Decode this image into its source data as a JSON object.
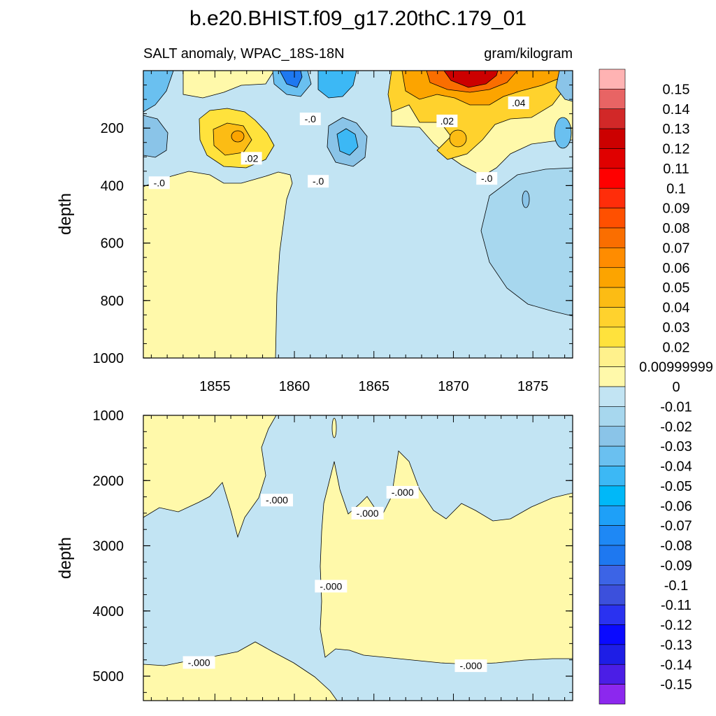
{
  "figure": {
    "title": "b.e20.BHIST.f09_g17.20thC.179_01",
    "left_subtitle": "SALT anomaly, WPAC_18S-18N",
    "right_subtitle": "gram/kilogram"
  },
  "colors": {
    "pos_light": "#fff9aa",
    "neg_light": "#c2e4f3",
    "contour_line": "#000000"
  },
  "chart_data": [
    {
      "type": "heatmap",
      "panel": "upper",
      "ylabel": "depth",
      "y_reversed": true,
      "ylim": [
        1000,
        0
      ],
      "xlim": [
        1850.5,
        1877.5
      ],
      "x_ticks": [
        "1855",
        "1860",
        "1865",
        "1870",
        "1875"
      ],
      "x_tick_values": [
        1855,
        1860,
        1865,
        1870,
        1875
      ],
      "y_ticks": [
        "200",
        "400",
        "600",
        "800",
        "1000"
      ],
      "y_tick_values": [
        200,
        400,
        600,
        800,
        1000
      ],
      "contour_labels": [
        {
          "text": "-.0",
          "x": 1851.5,
          "y": 390
        },
        {
          "text": ".02",
          "x": 1857.3,
          "y": 305
        },
        {
          "text": "-.0",
          "x": 1861.0,
          "y": 168
        },
        {
          "text": "-.0",
          "x": 1861.5,
          "y": 385
        },
        {
          "text": ".02",
          "x": 1869.6,
          "y": 175
        },
        {
          "text": ".04",
          "x": 1874.1,
          "y": 112
        },
        {
          "text": "-.0",
          "x": 1872.1,
          "y": 375
        }
      ]
    },
    {
      "type": "heatmap",
      "panel": "lower",
      "ylabel": "depth",
      "y_reversed": true,
      "ylim": [
        5375,
        1000
      ],
      "xlim": [
        1850.5,
        1877.5
      ],
      "y_ticks": [
        "1000",
        "2000",
        "3000",
        "4000",
        "5000"
      ],
      "y_tick_values": [
        1000,
        2000,
        3000,
        4000,
        5000
      ],
      "contour_labels": [
        {
          "text": "-.000",
          "x": 1858.9,
          "y": 2300
        },
        {
          "text": "-.000",
          "x": 1864.6,
          "y": 2500
        },
        {
          "text": "-.000",
          "x": 1866.8,
          "y": 2180
        },
        {
          "text": "-.000",
          "x": 1862.3,
          "y": 3620
        },
        {
          "text": "-.000",
          "x": 1854.0,
          "y": 4790
        },
        {
          "text": "-.000",
          "x": 1871.1,
          "y": 4840
        }
      ]
    }
  ],
  "colorbar": {
    "labels": [
      "0.15",
      "0.14",
      "0.13",
      "0.12",
      "0.11",
      "0.1",
      "0.09",
      "0.08",
      "0.07",
      "0.06",
      "0.05",
      "0.04",
      "0.03",
      "0.02",
      "0.00999999",
      "0",
      "-0.01",
      "-0.02",
      "-0.03",
      "-0.04",
      "-0.05",
      "-0.06",
      "-0.07",
      "-0.08",
      "-0.09",
      "-0.1",
      "-0.11",
      "-0.12",
      "-0.13",
      "-0.14",
      "-0.15"
    ],
    "colors": [
      "#ffb3b3",
      "#e86464",
      "#d22828",
      "#cc0000",
      "#e00000",
      "#ff0000",
      "#ff2d0a",
      "#ff5000",
      "#fa6e00",
      "#ff8c00",
      "#fca400",
      "#fcbc14",
      "#ffd22d",
      "#ffe23c",
      "#fff18c",
      "#fff9aa",
      "#c2e4f3",
      "#a7d7ee",
      "#8ac4e8",
      "#6ac0f0",
      "#3cb8f5",
      "#00b8f8",
      "#1ea0f8",
      "#1e88f5",
      "#1e78f0",
      "#3c64e6",
      "#3c50dc",
      "#2a32f0",
      "#0a0aff",
      "#1e1ee6",
      "#4b1ee6",
      "#8c28ee"
    ]
  }
}
